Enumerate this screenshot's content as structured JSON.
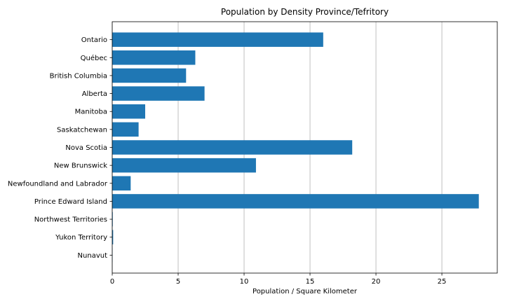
{
  "chart_data": {
    "type": "bar",
    "orientation": "horizontal",
    "title": "Population by Density Province/Tefritory",
    "xlabel": "Population / Square Kilometer",
    "ylabel": "",
    "categories": [
      "Ontario",
      "Québec",
      "British Columbia",
      "Alberta",
      "Manitoba",
      "Saskatchewan",
      "Nova Scotia",
      "New Brunswick",
      "Newfoundland and Labrador",
      "Prince Edward Island",
      "Northwest Territories",
      "Yukon Territory",
      "Nunavut"
    ],
    "values": [
      16.0,
      6.3,
      5.6,
      7.0,
      2.5,
      2.0,
      18.2,
      10.9,
      1.4,
      27.8,
      0.04,
      0.07,
      0.02
    ],
    "xlim": [
      0,
      29.2
    ],
    "xticks": [
      0,
      5,
      10,
      15,
      20,
      25
    ],
    "grid": {
      "x": true,
      "y": false
    },
    "bar_color": "#1f77b4",
    "grid_color": "#b0b0b0"
  }
}
